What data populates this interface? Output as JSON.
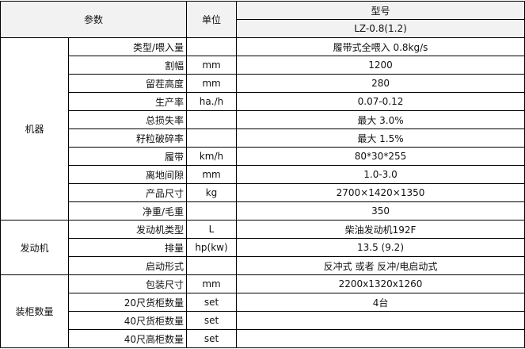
{
  "header": {
    "param_label": "参数",
    "unit_label": "单位",
    "model_label": "型号",
    "model_value": "LZ-0.8(1.2)"
  },
  "groups": [
    {
      "name": "机器",
      "rows": [
        {
          "param": "类型/喂入量",
          "unit": "",
          "value": "履带式全喂入  0.8kg/s"
        },
        {
          "param": "割幅",
          "unit": "mm",
          "value": "1200"
        },
        {
          "param": "留茬高度",
          "unit": "mm",
          "value": "280"
        },
        {
          "param": "生产率",
          "unit": "ha./h",
          "value": "0.07-0.12"
        },
        {
          "param": "总损失率",
          "unit": "",
          "value": "最大 3.0%"
        },
        {
          "param": "籽粒破碎率",
          "unit": "",
          "value": "最大 1.5%"
        },
        {
          "param": "履带",
          "unit": "km/h",
          "value": "80*30*255"
        },
        {
          "param": "离地间隙",
          "unit": "mm",
          "value": "1.0-3.0"
        },
        {
          "param": "产品尺寸",
          "unit": "kg",
          "value": "2700×1420×1350"
        },
        {
          "param": "净重/毛重",
          "unit": "",
          "value": "350"
        }
      ]
    },
    {
      "name": "发动机",
      "rows": [
        {
          "param": "发动机类型",
          "unit": "L",
          "value": "柴油发动机192F"
        },
        {
          "param": "排量",
          "unit": "hp(kw)",
          "value": "13.5 (9.2)"
        },
        {
          "param": "启动形式",
          "unit": "",
          "value": "反冲式 或者 反冲/电启动式"
        }
      ]
    },
    {
      "name": "装柜数量",
      "rows": [
        {
          "param": "包装尺寸",
          "unit": "mm",
          "value": "2200x1320x1260"
        },
        {
          "param": "20尺货柜数量",
          "unit": "set",
          "value": "4台"
        },
        {
          "param": "40尺货柜数量",
          "unit": "set",
          "value": ""
        },
        {
          "param": "40尺高柜数量",
          "unit": "set",
          "value": ""
        }
      ]
    }
  ]
}
